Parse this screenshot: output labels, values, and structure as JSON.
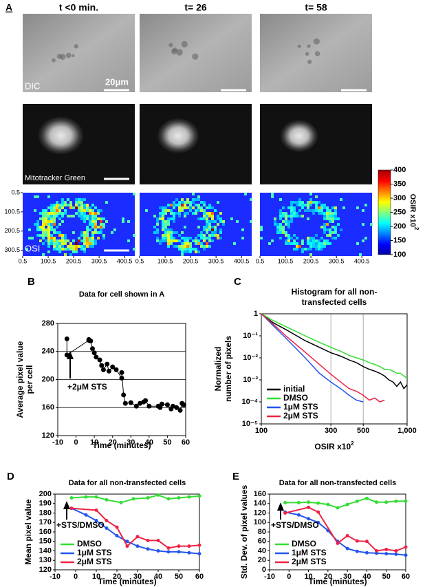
{
  "panel_a": {
    "label": "A",
    "columns": [
      "t <0 min.",
      "t= 26",
      "t= 58"
    ],
    "row_labels": [
      "DIC",
      "Mitotracker Green",
      "OSI"
    ],
    "scale_bar": "20μm",
    "heatmap_axes": {
      "xlim": [
        0.5,
        440.5
      ],
      "ylim": [
        0.5,
        330.5
      ],
      "xticks": [
        0.5,
        100.5,
        200.5,
        300.5,
        400.5
      ],
      "yticks": [
        0.5,
        100.5,
        200.5,
        300.5
      ]
    },
    "colorbar": {
      "lim": [
        100,
        400
      ],
      "ticks": [
        100,
        150,
        200,
        250,
        300,
        350,
        400
      ],
      "label": "OSIR x10",
      "label_sup": "2"
    }
  },
  "chart_data": [
    {
      "panel": "B",
      "type": "scatter",
      "title": [
        "Data for cell shown in A"
      ],
      "xlabel": "Time (minutes)",
      "ylabel": [
        "Average pixel value",
        "per cell"
      ],
      "xlim": [
        -10,
        60
      ],
      "xticks": [
        -10,
        0,
        10,
        20,
        30,
        40,
        50,
        60
      ],
      "ylim": [
        120,
        280
      ],
      "yticks": [
        120,
        160,
        200,
        240,
        280
      ],
      "grid": "y",
      "connect": true,
      "color": "#000000",
      "annotation": "+2μM STS",
      "x": [
        -5,
        -5,
        7,
        7,
        8,
        9,
        10,
        11,
        13,
        14,
        15,
        17,
        18,
        20,
        22,
        25,
        25,
        26,
        27,
        30,
        33,
        35,
        37,
        38,
        40,
        45,
        46,
        47,
        50,
        52,
        53,
        55,
        57,
        58,
        59
      ],
      "values": [
        258,
        235,
        256,
        257,
        255,
        244,
        238,
        232,
        228,
        220,
        214,
        222,
        212,
        218,
        214,
        202,
        210,
        178,
        166,
        167,
        162,
        166,
        168,
        170,
        162,
        162,
        160,
        165,
        164,
        158,
        162,
        160,
        156,
        166,
        164
      ]
    },
    {
      "panel": "C",
      "type": "line",
      "title": [
        "Histogram for all non-",
        "transfected cells"
      ],
      "xlabel": "OSIR x10",
      "xlabel_sup": "2",
      "ylabel": [
        "Normalized",
        "number of pixels"
      ],
      "xscale": "log",
      "yscale": "log",
      "xlim": [
        100,
        1000
      ],
      "xticks": [
        100,
        300,
        500,
        {
          "value": 1000,
          "label": "1,000"
        }
      ],
      "ylim": [
        1e-05,
        1
      ],
      "yticks": [
        1,
        {
          "value": 0.1,
          "label": "10⁻¹"
        },
        {
          "value": 0.01,
          "label": "10⁻²"
        },
        {
          "value": 0.001,
          "label": "10⁻³"
        },
        {
          "value": 0.0001,
          "label": "10⁻⁴"
        },
        {
          "value": 1e-05,
          "label": "10⁻⁵"
        }
      ],
      "grid": "x",
      "legend": "lower left",
      "x": [
        100,
        120,
        150,
        200,
        250,
        300,
        350,
        400,
        450,
        500,
        550,
        600,
        650,
        700,
        750,
        800,
        850,
        900,
        950,
        1000
      ],
      "series": [
        {
          "name": "initial",
          "color": "#000000",
          "values": [
            1,
            0.4,
            0.18,
            0.06,
            0.03,
            0.017,
            0.012,
            0.008,
            0.006,
            0.004,
            0.003,
            0.0025,
            0.002,
            0.0015,
            0.001,
            0.0008,
            0.0005,
            0.0008,
            0.0004,
            0.0006
          ]
        },
        {
          "name": "DMSO",
          "color": "#33dd33",
          "values": [
            1,
            0.5,
            0.25,
            0.1,
            0.05,
            0.03,
            0.02,
            0.013,
            0.01,
            0.008,
            0.006,
            0.005,
            0.004,
            0.003,
            0.003,
            0.0025,
            0.002,
            0.002,
            0.0015,
            0.0012
          ]
        },
        {
          "name": "1μM STS",
          "color": "#2255ee",
          "values": [
            1,
            0.3,
            0.07,
            0.01,
            0.002,
            0.0008,
            0.0004,
            0.0002,
            0.00012,
            0.0001,
            null,
            null,
            null,
            null,
            null,
            null,
            null,
            null,
            null,
            null
          ]
        },
        {
          "name": "2μM STS",
          "color": "#ee2244",
          "values": [
            1,
            0.35,
            0.09,
            0.018,
            0.005,
            0.0018,
            0.0008,
            0.0004,
            0.0003,
            0.0002,
            0.00012,
            0.00015,
            0.0001,
            0.00012,
            null,
            null,
            null,
            null,
            null,
            null
          ]
        }
      ]
    },
    {
      "panel": "D",
      "type": "line",
      "markers": true,
      "title": [
        "Data for all non-transfected cells"
      ],
      "xlabel": "Time (minutes)",
      "ylabel": [
        "Mean pixel value"
      ],
      "xlim": [
        -10,
        60
      ],
      "xticks": [
        -10,
        0,
        10,
        20,
        30,
        40,
        50,
        60
      ],
      "ylim": [
        120,
        200
      ],
      "yticks": [
        120,
        130,
        140,
        150,
        160,
        170,
        180,
        190,
        200
      ],
      "legend": "lower left",
      "annotation": "+STS/DMSO",
      "series": [
        {
          "name": "DMSO",
          "color": "#33dd33",
          "x": [
            -2,
            5,
            10,
            15,
            22,
            28,
            35,
            40,
            45,
            50,
            55,
            60
          ],
          "values": [
            196,
            197,
            197,
            194,
            191,
            195,
            196,
            199,
            195,
            196,
            197,
            198
          ]
        },
        {
          "name": "1μM STS",
          "color": "#2255ee",
          "x": [
            -2,
            5,
            10,
            15,
            20,
            25,
            30,
            35,
            40,
            45,
            50,
            55,
            60
          ],
          "values": [
            185,
            178,
            172,
            164,
            156,
            150,
            145,
            142,
            140,
            139,
            139,
            138,
            137
          ]
        },
        {
          "name": "2μM STS",
          "color": "#ee2244",
          "x": [
            -2,
            10,
            15,
            20,
            25,
            30,
            35,
            40,
            45,
            50,
            55,
            60
          ],
          "values": [
            185,
            183,
            172,
            165,
            145,
            155,
            151,
            151,
            143,
            145,
            145,
            146
          ]
        }
      ]
    },
    {
      "panel": "E",
      "type": "line",
      "markers": true,
      "title": [
        "Data for all non-transfected cells"
      ],
      "xlabel": "Time (minutes)",
      "ylabel": [
        "Std. Dev. of pixel values"
      ],
      "xlim": [
        -10,
        60
      ],
      "xticks": [
        -10,
        0,
        10,
        20,
        30,
        40,
        50,
        60
      ],
      "ylim": [
        0,
        160
      ],
      "yticks": [
        0,
        20,
        40,
        60,
        80,
        100,
        120,
        140,
        160
      ],
      "legend": "lower left",
      "annotation": "+STS/DMSO",
      "series": [
        {
          "name": "DMSO",
          "color": "#33dd33",
          "x": [
            -2,
            5,
            10,
            15,
            20,
            25,
            30,
            35,
            40,
            45,
            50,
            55,
            60
          ],
          "values": [
            142,
            142,
            143,
            141,
            138,
            131,
            138,
            145,
            151,
            143,
            143,
            145,
            145
          ]
        },
        {
          "name": "1μM STS",
          "color": "#2255ee",
          "x": [
            -2,
            5,
            10,
            15,
            20,
            25,
            30,
            35,
            40,
            45,
            50,
            55,
            60
          ],
          "values": [
            122,
            116,
            108,
            100,
            83,
            60,
            45,
            39,
            36,
            35,
            34,
            33,
            31
          ]
        },
        {
          "name": "2μM STS",
          "color": "#ee2244",
          "x": [
            -2,
            10,
            15,
            25,
            30,
            35,
            40,
            45,
            50,
            55,
            60
          ],
          "values": [
            120,
            132,
            122,
            56,
            72,
            61,
            60,
            40,
            43,
            40,
            48
          ]
        }
      ]
    }
  ]
}
